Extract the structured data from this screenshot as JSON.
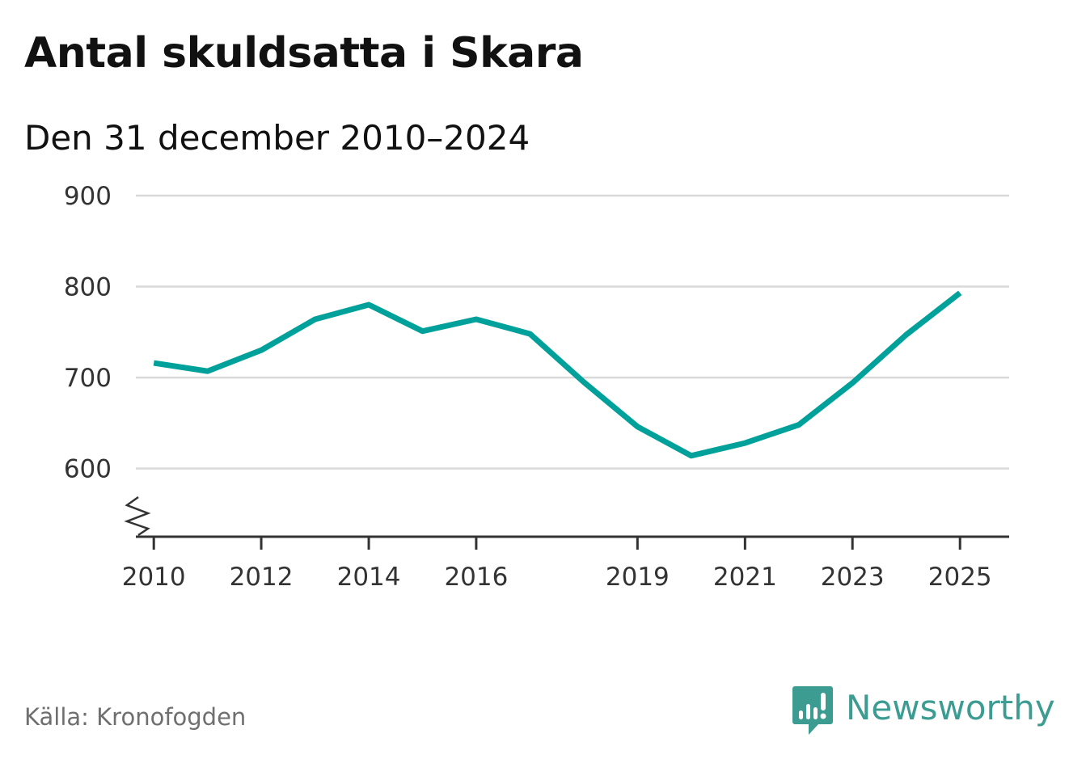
{
  "header": {
    "title": "Antal skuldsatta i Skara",
    "subtitle": "Den 31 december 2010–2024"
  },
  "footer": {
    "source": "Källa: Kronofogden",
    "brand": "Newsworthy",
    "brand_icon": "newsworthy-logo-icon"
  },
  "colors": {
    "line": "#00a19a",
    "grid": "#d9d9d9",
    "axis": "#333333",
    "brand": "#3c9c92"
  },
  "chart_data": {
    "type": "line",
    "title": "Antal skuldsatta i Skara",
    "subtitle": "Den 31 december 2010–2024",
    "xlabel": "",
    "ylabel": "",
    "x_ticks": [
      "2010",
      "2012",
      "2014",
      "2016",
      "2019",
      "2021",
      "2023",
      "2025"
    ],
    "y_ticks": [
      600,
      700,
      800,
      900
    ],
    "ylim": [
      525,
      900
    ],
    "xlim": [
      "2009-09-01",
      "2025-12-01"
    ],
    "y_axis_break": true,
    "grid": "horizontal",
    "series": [
      {
        "x": [
          "2010-01-01",
          "2011-01-01",
          "2012-01-01",
          "2013-01-01",
          "2014-01-01",
          "2015-01-01",
          "2016-01-01",
          "2017-01-01",
          "2018-01-01",
          "2019-01-01",
          "2020-01-01",
          "2021-01-01",
          "2022-01-01",
          "2023-01-01",
          "2024-01-01",
          "2025-01-01"
        ],
        "values": [
          716,
          707,
          730,
          764,
          780,
          751,
          764,
          748,
          695,
          646,
          614,
          628,
          648,
          694,
          747,
          793
        ]
      }
    ]
  }
}
